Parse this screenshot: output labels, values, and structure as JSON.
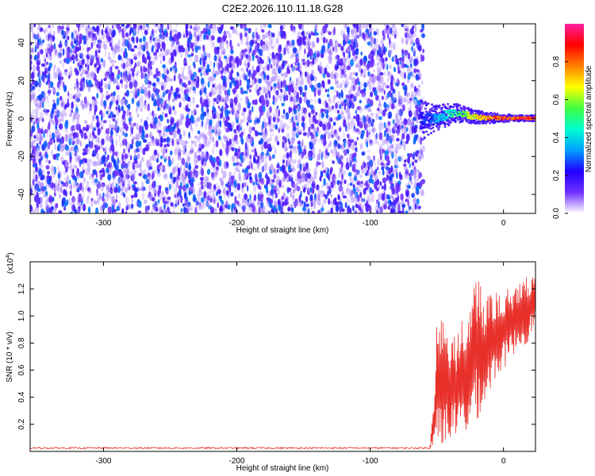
{
  "title": "C2E2.2026.110.11.18.G28",
  "chart_data": [
    {
      "type": "heatmap",
      "xlabel": "Height of straight line (km)",
      "ylabel": "Frequency (Hz)",
      "xlim": [
        -355,
        24
      ],
      "ylim": [
        -50,
        50
      ],
      "x_ticks": [
        -300,
        -200,
        -100,
        0
      ],
      "y_ticks": [
        -40,
        -20,
        0,
        20,
        40
      ],
      "grid": false,
      "noise_region": {
        "x": [
          -355,
          -60
        ],
        "typical_amplitude": [
          0.1,
          0.25
        ]
      },
      "signal_track": [
        {
          "x": -62,
          "freq_center": -1.0,
          "freq_halfwidth": 7,
          "amplitude": 0.25
        },
        {
          "x": -55,
          "freq_center": -0.5,
          "freq_halfwidth": 5,
          "amplitude": 0.3
        },
        {
          "x": -45,
          "freq_center": 1.5,
          "freq_halfwidth": 4,
          "amplitude": 0.45
        },
        {
          "x": -35,
          "freq_center": 3.0,
          "freq_halfwidth": 3,
          "amplitude": 0.55
        },
        {
          "x": -25,
          "freq_center": 1.5,
          "freq_halfwidth": 2.5,
          "amplitude": 0.7
        },
        {
          "x": -15,
          "freq_center": 0.5,
          "freq_halfwidth": 2,
          "amplitude": 0.85
        },
        {
          "x": -5,
          "freq_center": 0.3,
          "freq_halfwidth": 1.5,
          "amplitude": 0.92
        },
        {
          "x": 5,
          "freq_center": 0.2,
          "freq_halfwidth": 1.2,
          "amplitude": 0.97
        },
        {
          "x": 15,
          "freq_center": 0.2,
          "freq_halfwidth": 1.0,
          "amplitude": 1.0
        },
        {
          "x": 24,
          "freq_center": 0.2,
          "freq_halfwidth": 1.0,
          "amplitude": 1.0
        }
      ]
    },
    {
      "type": "line",
      "xlabel": "Height of straight line (km)",
      "ylabel": "SNR (10 * v/v)",
      "y_scale_label": "(x10",
      "y_scale_exponent": "4",
      "y_scale_suffix": ")",
      "xlim": [
        -355,
        24
      ],
      "ylim": [
        0,
        1.4
      ],
      "x_ticks": [
        -300,
        -200,
        -100,
        0
      ],
      "y_ticks": [
        0.2,
        0.4,
        0.6,
        0.8,
        1.0,
        1.2
      ],
      "grid": false,
      "series": [
        {
          "color": "#e8302a",
          "baseline": {
            "x_range": [
              -355,
              -55
            ],
            "value": 0.025
          },
          "envelope": [
            {
              "x": -55,
              "min": 0.02,
              "max": 0.05
            },
            {
              "x": -52,
              "min": 0.05,
              "max": 0.4
            },
            {
              "x": -50,
              "min": 0.05,
              "max": 1.1
            },
            {
              "x": -45,
              "min": 0.05,
              "max": 0.95
            },
            {
              "x": -40,
              "min": 0.08,
              "max": 0.9
            },
            {
              "x": -35,
              "min": 0.1,
              "max": 0.85
            },
            {
              "x": -30,
              "min": 0.1,
              "max": 1.0
            },
            {
              "x": -25,
              "min": 0.15,
              "max": 1.1
            },
            {
              "x": -22,
              "min": 0.2,
              "max": 1.38
            },
            {
              "x": -15,
              "min": 0.3,
              "max": 1.15
            },
            {
              "x": -10,
              "min": 0.45,
              "max": 1.15
            },
            {
              "x": -5,
              "min": 0.55,
              "max": 1.2
            },
            {
              "x": 0,
              "min": 0.6,
              "max": 1.2
            },
            {
              "x": 10,
              "min": 0.75,
              "max": 1.25
            },
            {
              "x": 18,
              "min": 0.8,
              "max": 1.3
            },
            {
              "x": 24,
              "min": 0.95,
              "max": 1.3
            }
          ]
        }
      ]
    }
  ],
  "colorbar": {
    "label": "Normalized spectral amplitude",
    "range": [
      0.0,
      1.0
    ],
    "ticks": [
      0.0,
      0.2,
      0.4,
      0.6,
      0.8
    ],
    "tick_labels": [
      "0.0",
      "0.2",
      "0.4",
      "0.6",
      "0.8"
    ],
    "colormap": [
      "#ffffff",
      "#7030ff",
      "#2000ff",
      "#00a0ff",
      "#00ffd0",
      "#40ff40",
      "#ffff00",
      "#ff8000",
      "#ff0000",
      "#ff20a0"
    ]
  }
}
